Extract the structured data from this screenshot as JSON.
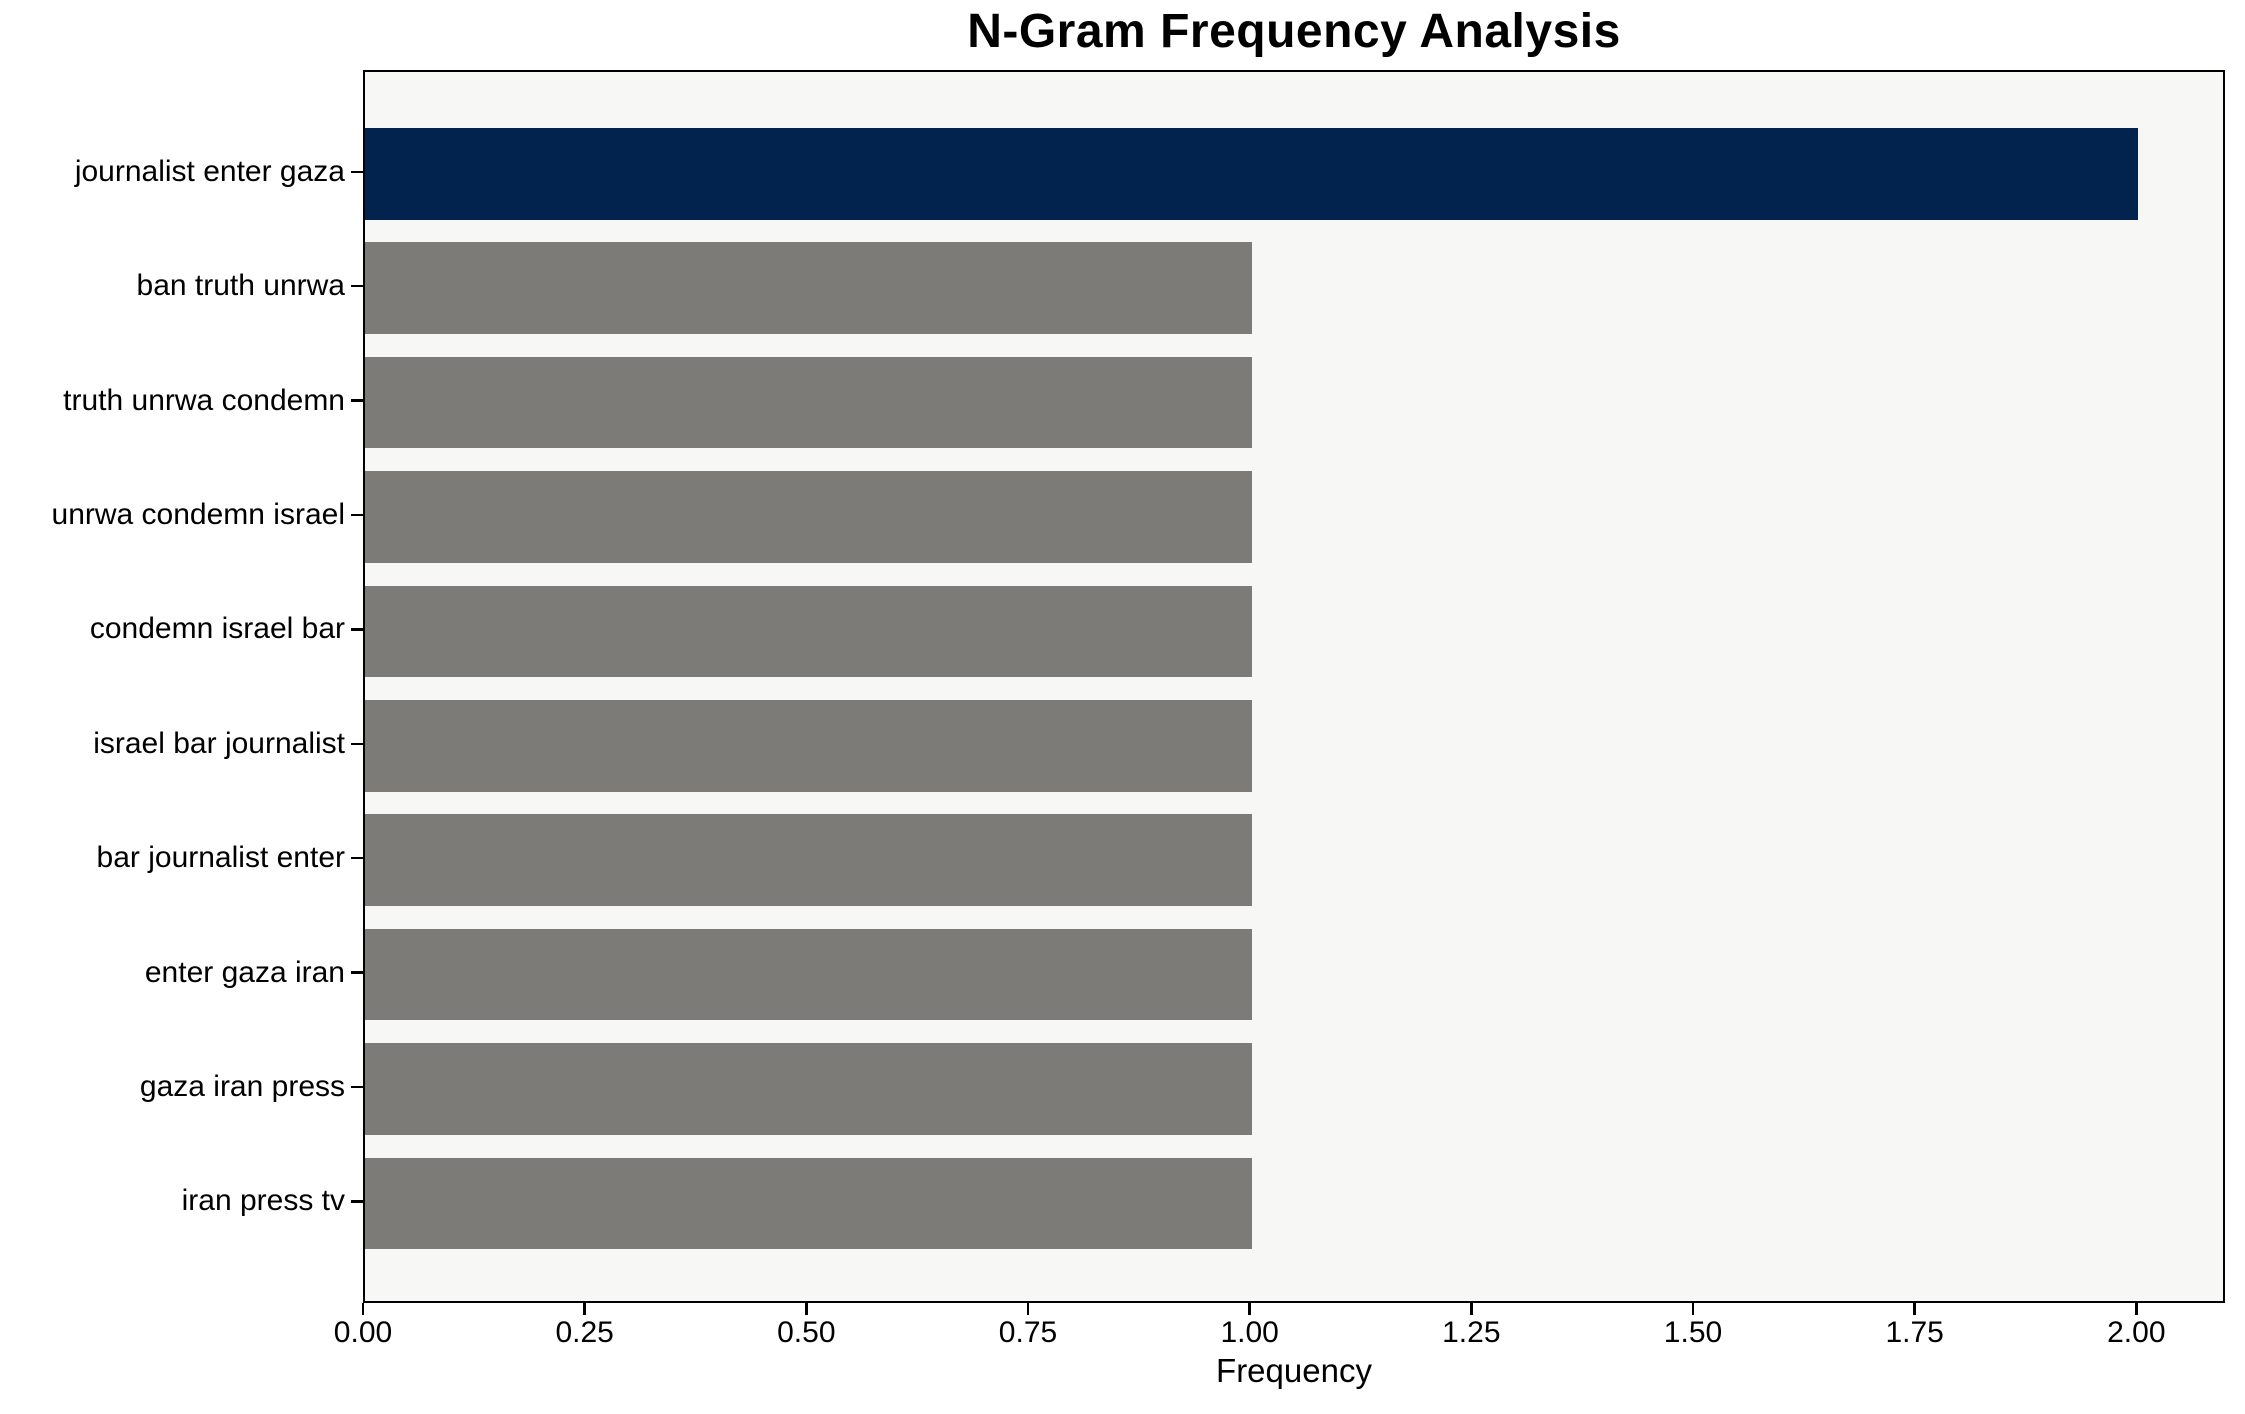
{
  "chart_data": {
    "type": "bar",
    "orientation": "horizontal",
    "title": "N-Gram Frequency Analysis",
    "xlabel": "Frequency",
    "ylabel": "",
    "categories": [
      "journalist enter gaza",
      "ban truth unrwa",
      "truth unrwa condemn",
      "unrwa condemn israel",
      "condemn israel bar",
      "israel bar journalist",
      "bar journalist enter",
      "enter gaza iran",
      "gaza iran press",
      "iran press tv"
    ],
    "values": [
      2,
      1,
      1,
      1,
      1,
      1,
      1,
      1,
      1,
      1
    ],
    "bar_colors": [
      "#03234f",
      "#7c7b78",
      "#7c7b78",
      "#7c7b78",
      "#7c7b78",
      "#7c7b78",
      "#7c7b78",
      "#7c7b78",
      "#7c7b78",
      "#7c7b78"
    ],
    "xlim": [
      0,
      2.1
    ],
    "xticks": [
      {
        "value": 0.0,
        "label": "0.00"
      },
      {
        "value": 0.25,
        "label": "0.25"
      },
      {
        "value": 0.5,
        "label": "0.50"
      },
      {
        "value": 0.75,
        "label": "0.75"
      },
      {
        "value": 1.0,
        "label": "1.00"
      },
      {
        "value": 1.25,
        "label": "1.25"
      },
      {
        "value": 1.5,
        "label": "1.50"
      },
      {
        "value": 1.75,
        "label": "1.75"
      },
      {
        "value": 2.0,
        "label": "2.00"
      }
    ],
    "grid": false,
    "legend": false,
    "colors": {
      "highlight_bar": "#03234f",
      "default_bar": "#7c7b78",
      "plot_background": "#f7f7f6",
      "figure_background": "#ffffff",
      "axis": "#000000"
    }
  }
}
